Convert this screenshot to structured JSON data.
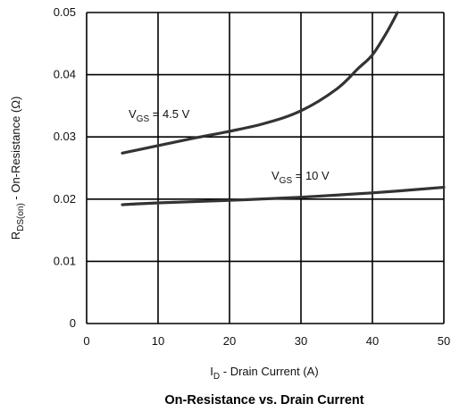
{
  "chart_data": {
    "type": "line",
    "title": "On-Resistance vs. Drain Current",
    "xlabel": {
      "main": "I",
      "sub": "D",
      "rest": " - Drain Current (A)"
    },
    "ylabel": {
      "main": "R",
      "sub": "DS(on)",
      "rest": " - On-Resistance (Ω)"
    },
    "xlim": [
      0,
      50
    ],
    "ylim": [
      0,
      0.05
    ],
    "x_ticks": [
      0,
      10,
      20,
      30,
      40,
      50
    ],
    "x_tick_labels": [
      "0",
      "10",
      "20",
      "30",
      "40",
      "50"
    ],
    "y_ticks": [
      0,
      0.01,
      0.02,
      0.03,
      0.04,
      0.05
    ],
    "y_tick_labels": [
      "0",
      "0.01",
      "0.02",
      "0.03",
      "0.04",
      "0.05"
    ],
    "grid": true,
    "series": [
      {
        "name": {
          "main": "V",
          "sub": "GS",
          "rest": " = 4.5 V"
        },
        "x": [
          5,
          10,
          15,
          20,
          25,
          30,
          35,
          38,
          40,
          42,
          43.5
        ],
        "y": [
          0.0274,
          0.0286,
          0.0298,
          0.0309,
          0.0322,
          0.0342,
          0.0377,
          0.041,
          0.0432,
          0.0468,
          0.05
        ]
      },
      {
        "name": {
          "main": "V",
          "sub": "GS",
          "rest": " = 10 V"
        },
        "x": [
          5,
          10,
          20,
          30,
          40,
          50
        ],
        "y": [
          0.0191,
          0.0194,
          0.0198,
          0.0203,
          0.021,
          0.0219
        ]
      }
    ]
  }
}
